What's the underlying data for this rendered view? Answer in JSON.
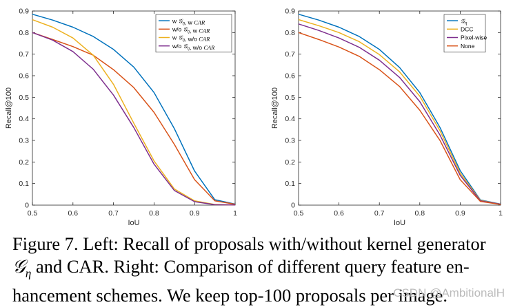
{
  "chart_data": [
    {
      "type": "line",
      "title": "",
      "xlabel": "IoU",
      "ylabel": "Recall@100",
      "xlim": [
        0.5,
        1
      ],
      "ylim": [
        0,
        0.9
      ],
      "x_ticks": [
        "0.5",
        "0.6",
        "0.7",
        "0.8",
        "0.9",
        "1"
      ],
      "y_ticks": [
        "0",
        "0.1",
        "0.2",
        "0.3",
        "0.4",
        "0.5",
        "0.6",
        "0.7",
        "0.8",
        "0.9"
      ],
      "legend_position": "top-right",
      "x": [
        0.5,
        0.55,
        0.6,
        0.65,
        0.7,
        0.75,
        0.8,
        0.85,
        0.9,
        0.95,
        1.0
      ],
      "series": [
        {
          "name": "w G_η, w CAR",
          "legend_main": "w ",
          "legend_symbol": "𝒢",
          "legend_sub": "η",
          "legend_rest": ", w ",
          "legend_italic": "CAR",
          "color": "#0072BD",
          "values": [
            0.885,
            0.858,
            0.825,
            0.782,
            0.722,
            0.64,
            0.522,
            0.355,
            0.158,
            0.025,
            0.005
          ]
        },
        {
          "name": "w/o G_η, w CAR",
          "legend_main": "w/o ",
          "legend_symbol": "𝒢",
          "legend_sub": "η",
          "legend_rest": ", w ",
          "legend_italic": "CAR",
          "color": "#D95319",
          "values": [
            0.8,
            0.768,
            0.735,
            0.695,
            0.628,
            0.545,
            0.43,
            0.282,
            0.118,
            0.02,
            0.004
          ]
        },
        {
          "name": "w G_η, w/o CAR",
          "legend_main": "w ",
          "legend_symbol": "𝒢",
          "legend_sub": "η",
          "legend_rest": ", w/o ",
          "legend_italic": "CAR",
          "color": "#EDB120",
          "values": [
            0.86,
            0.825,
            0.775,
            0.695,
            0.56,
            0.38,
            0.205,
            0.075,
            0.02,
            0.003,
            0.001
          ]
        },
        {
          "name": "w/o G_η, w/o CAR",
          "legend_main": "w/o ",
          "legend_symbol": "𝒢",
          "legend_sub": "η",
          "legend_rest": ", w/o ",
          "legend_italic": "CAR",
          "color": "#7E2F8E",
          "values": [
            0.8,
            0.765,
            0.712,
            0.63,
            0.51,
            0.36,
            0.19,
            0.068,
            0.016,
            0.002,
            0.001
          ]
        }
      ]
    },
    {
      "type": "line",
      "title": "",
      "xlabel": "IoU",
      "ylabel": "Recall@100",
      "xlim": [
        0.5,
        1
      ],
      "ylim": [
        0,
        0.9
      ],
      "x_ticks": [
        "0.5",
        "0.6",
        "0.7",
        "0.8",
        "0.9",
        "1"
      ],
      "y_ticks": [
        "0",
        "0.1",
        "0.2",
        "0.3",
        "0.4",
        "0.5",
        "0.6",
        "0.7",
        "0.8",
        "0.9"
      ],
      "legend_position": "top-right",
      "x": [
        0.5,
        0.55,
        0.6,
        0.65,
        0.7,
        0.75,
        0.8,
        0.85,
        0.9,
        0.95,
        1.0
      ],
      "series": [
        {
          "name": "G_η",
          "legend_main": "",
          "legend_symbol": "𝒢",
          "legend_sub": "η",
          "legend_rest": "",
          "legend_italic": "",
          "color": "#0072BD",
          "values": [
            0.885,
            0.858,
            0.825,
            0.782,
            0.722,
            0.638,
            0.522,
            0.36,
            0.16,
            0.024,
            0.005
          ]
        },
        {
          "name": "DCC",
          "legend_main": "DCC",
          "legend_symbol": "",
          "legend_sub": "",
          "legend_rest": "",
          "legend_italic": "",
          "color": "#EDB120",
          "values": [
            0.86,
            0.832,
            0.8,
            0.758,
            0.698,
            0.618,
            0.505,
            0.345,
            0.148,
            0.022,
            0.004
          ]
        },
        {
          "name": "Pixel-wise",
          "legend_main": "Pixel-wise",
          "legend_symbol": "",
          "legend_sub": "",
          "legend_rest": "",
          "legend_italic": "",
          "color": "#7E2F8E",
          "values": [
            0.84,
            0.81,
            0.775,
            0.732,
            0.672,
            0.592,
            0.48,
            0.325,
            0.138,
            0.02,
            0.004
          ]
        },
        {
          "name": "None",
          "legend_main": "None",
          "legend_symbol": "",
          "legend_sub": "",
          "legend_rest": "",
          "legend_italic": "",
          "color": "#D95319",
          "values": [
            0.8,
            0.768,
            0.733,
            0.69,
            0.628,
            0.55,
            0.44,
            0.3,
            0.118,
            0.017,
            0.003
          ]
        }
      ]
    }
  ],
  "caption": {
    "line1": "Figure 7. Left: Recall of proposals with/without kernel generator",
    "line2_symbol": "𝒢",
    "line2_sub": "η",
    "line2_text": " and CAR. Right: Comparison of different query feature en-",
    "line3": "hancement schemes. We keep top-100 proposals per image."
  },
  "watermark": "CSDN @AmbitionalH"
}
